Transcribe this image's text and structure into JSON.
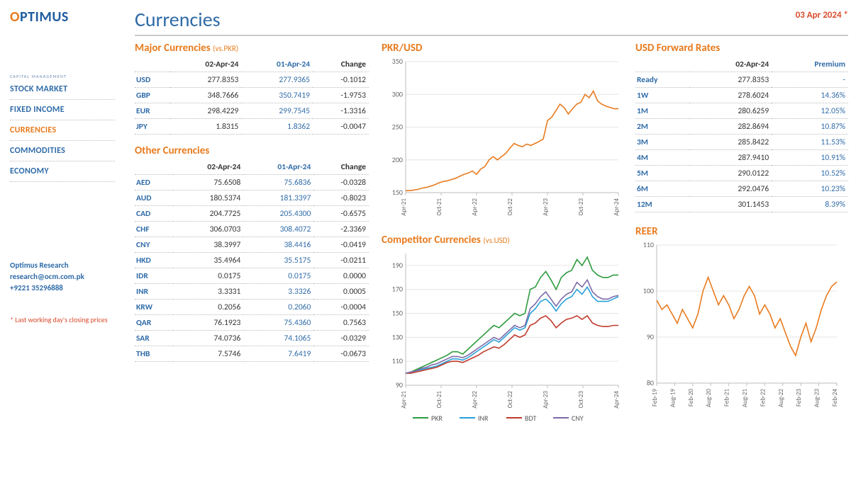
{
  "brand": {
    "name": "OPTIMUS",
    "sub": "CAPITAL MANAGEMENT"
  },
  "nav": {
    "items": [
      {
        "label": "STOCK MARKET",
        "active": false
      },
      {
        "label": "FIXED INCOME",
        "active": false
      },
      {
        "label": "CURRENCIES",
        "active": true
      },
      {
        "label": "COMMODITIES",
        "active": false
      },
      {
        "label": "ECONOMY",
        "active": false
      }
    ]
  },
  "contact": {
    "name": "Optimus Research",
    "email": "research@ocm.com.pk",
    "phone": "+9221 35296888"
  },
  "footnote": "Last working day's closing prices",
  "page_title": "Currencies",
  "date_stamp": "03 Apr 2024 *",
  "major": {
    "title": "Major Currencies",
    "sub": "(vs.PKR)",
    "columns": [
      "",
      "02-Apr-24",
      "01-Apr-24",
      "Change"
    ],
    "rows": [
      [
        "USD",
        "277.8353",
        "277.9365",
        "-0.1012"
      ],
      [
        "GBP",
        "348.7666",
        "350.7419",
        "-1.9753"
      ],
      [
        "EUR",
        "298.4229",
        "299.7545",
        "-1.3316"
      ],
      [
        "JPY",
        "1.8315",
        "1.8362",
        "-0.0047"
      ]
    ]
  },
  "other": {
    "title": "Other Currencies",
    "columns": [
      "",
      "02-Apr-24",
      "01-Apr-24",
      "Change"
    ],
    "rows": [
      [
        "AED",
        "75.6508",
        "75.6836",
        "-0.0328"
      ],
      [
        "AUD",
        "180.5374",
        "181.3397",
        "-0.8023"
      ],
      [
        "CAD",
        "204.7725",
        "205.4300",
        "-0.6575"
      ],
      [
        "CHF",
        "306.0703",
        "308.4072",
        "-2.3369"
      ],
      [
        "CNY",
        "38.3997",
        "38.4416",
        "-0.0419"
      ],
      [
        "HKD",
        "35.4964",
        "35.5175",
        "-0.0211"
      ],
      [
        "IDR",
        "0.0175",
        "0.0175",
        "0.0000"
      ],
      [
        "INR",
        "3.3331",
        "3.3326",
        "0.0005"
      ],
      [
        "KRW",
        "0.2056",
        "0.2060",
        "-0.0004"
      ],
      [
        "QAR",
        "76.1923",
        "75.4360",
        "0.7563"
      ],
      [
        "SAR",
        "74.0736",
        "74.1065",
        "-0.0329"
      ],
      [
        "THB",
        "7.5746",
        "7.6419",
        "-0.0673"
      ]
    ]
  },
  "forward": {
    "title": "USD Forward Rates",
    "columns": [
      "",
      "02-Apr-24",
      "Premium"
    ],
    "rows": [
      [
        "Ready",
        "277.8353",
        "-"
      ],
      [
        "1W",
        "278.6024",
        "14.36%"
      ],
      [
        "1M",
        "280.6259",
        "12.05%"
      ],
      [
        "2M",
        "282.8694",
        "10.87%"
      ],
      [
        "3M",
        "285.8422",
        "11.53%"
      ],
      [
        "4M",
        "287.9410",
        "10.91%"
      ],
      [
        "5M",
        "290.0122",
        "10.52%"
      ],
      [
        "6M",
        "292.0476",
        "10.23%"
      ],
      [
        "12M",
        "301.1453",
        "8.39%"
      ]
    ]
  },
  "chart_pkrusd": {
    "title": "PKR/USD",
    "type": "line",
    "color": "#e87b1e",
    "ylim": [
      150,
      350
    ],
    "ytick_step": 50,
    "xticks": [
      "Apr-21",
      "Oct-21",
      "Apr-22",
      "Oct-22",
      "Apr-23",
      "Oct-23",
      "Apr-24"
    ],
    "background": "#ffffff",
    "grid_color": "#e6e6e6",
    "values": [
      153,
      153,
      154,
      155,
      157,
      158,
      160,
      162,
      165,
      167,
      168,
      170,
      172,
      175,
      178,
      180,
      183,
      178,
      186,
      190,
      200,
      205,
      200,
      205,
      210,
      218,
      225,
      222,
      220,
      224,
      222,
      225,
      228,
      232,
      260,
      265,
      275,
      285,
      280,
      270,
      278,
      285,
      288,
      300,
      295,
      305,
      290,
      285,
      282,
      280,
      278,
      278
    ]
  },
  "chart_comp": {
    "title": "Competitor Currencies",
    "sub": "(vs.USD)",
    "type": "line",
    "ylim": [
      90,
      200
    ],
    "yticks": [
      90,
      110,
      130,
      150,
      170,
      190
    ],
    "xticks": [
      "Apr-21",
      "Oct-21",
      "Apr-22",
      "Oct-22",
      "Apr-23",
      "Oct-23",
      "Apr-24"
    ],
    "background": "#ffffff",
    "grid_color": "#e6e6e6",
    "series": [
      {
        "name": "PKR",
        "color": "#2e9b3e",
        "values": [
          100,
          101,
          103,
          105,
          107,
          109,
          111,
          113,
          115,
          118,
          118,
          116,
          120,
          124,
          128,
          132,
          136,
          140,
          138,
          142,
          146,
          150,
          148,
          150,
          170,
          172,
          180,
          185,
          178,
          170,
          180,
          184,
          186,
          195,
          190,
          197,
          186,
          182,
          180,
          180,
          182,
          182
        ]
      },
      {
        "name": "INR",
        "color": "#2aa1d8",
        "values": [
          100,
          101,
          102,
          103,
          104,
          105,
          106,
          108,
          110,
          112,
          112,
          111,
          113,
          116,
          119,
          122,
          125,
          128,
          126,
          130,
          134,
          138,
          136,
          138,
          150,
          154,
          160,
          162,
          158,
          152,
          158,
          162,
          164,
          170,
          166,
          172,
          164,
          160,
          160,
          160,
          162,
          164
        ]
      },
      {
        "name": "BDT",
        "color": "#c0392b",
        "values": [
          100,
          100,
          101,
          102,
          103,
          104,
          105,
          107,
          109,
          110,
          110,
          109,
          111,
          113,
          115,
          118,
          120,
          122,
          121,
          124,
          128,
          132,
          130,
          132,
          140,
          142,
          146,
          148,
          144,
          138,
          142,
          145,
          146,
          148,
          145,
          148,
          142,
          140,
          139,
          139,
          140,
          140
        ]
      },
      {
        "name": "CNY",
        "color": "#7e6aa8",
        "values": [
          100,
          101,
          102,
          104,
          105,
          107,
          108,
          110,
          112,
          114,
          114,
          113,
          115,
          118,
          121,
          124,
          127,
          130,
          128,
          132,
          136,
          140,
          138,
          140,
          154,
          158,
          164,
          168,
          162,
          156,
          162,
          166,
          168,
          176,
          172,
          178,
          168,
          164,
          162,
          162,
          164,
          165
        ]
      }
    ]
  },
  "chart_reer": {
    "title": "REER",
    "type": "line",
    "color": "#e87b1e",
    "ylim": [
      80,
      110
    ],
    "ytick_step": 10,
    "xticks": [
      "Feb-19",
      "Aug-19",
      "Feb-20",
      "Aug-20",
      "Feb-21",
      "Aug-21",
      "Feb-22",
      "Aug-22",
      "Feb-23",
      "Aug-23",
      "Feb-24"
    ],
    "background": "#ffffff",
    "grid_color": "#e6e6e6",
    "values": [
      98,
      96,
      97,
      95,
      93,
      96,
      94,
      92,
      95,
      100,
      103,
      100,
      97,
      99,
      97,
      94,
      96,
      99,
      101,
      99,
      95,
      97,
      95,
      92,
      94,
      91,
      88,
      86,
      90,
      93,
      89,
      92,
      96,
      99,
      101,
      102
    ]
  }
}
